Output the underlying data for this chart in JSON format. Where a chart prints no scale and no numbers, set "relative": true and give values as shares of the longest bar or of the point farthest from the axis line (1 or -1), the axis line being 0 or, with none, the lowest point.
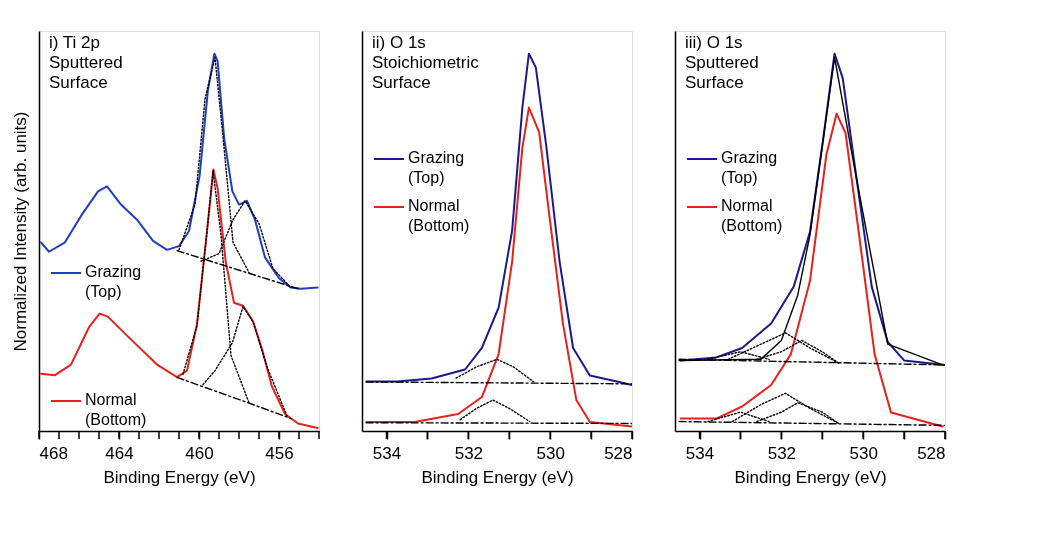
{
  "chart_data": [
    {
      "type": "line",
      "title": "i) Ti 2p\nSputtered\nSurface",
      "xlabel": "Binding Energy (eV)",
      "ylabel": "Normalized Intensity (arb. units)",
      "relative": true,
      "tick_labels": "x",
      "legend": "left",
      "xlim": [
        468,
        454
      ],
      "xticks": [
        468,
        {
          "value": 467,
          "label": null
        },
        {
          "value": 466,
          "label": null
        },
        {
          "value": 465,
          "label": null
        },
        464,
        {
          "value": 463,
          "label": null
        },
        {
          "value": 462,
          "label": null
        },
        {
          "value": 461,
          "label": null
        },
        460,
        {
          "value": 459,
          "label": null
        },
        {
          "value": 458,
          "label": null
        },
        {
          "value": 457,
          "label": null
        },
        456,
        {
          "value": 455,
          "label": null
        },
        {
          "value": 454,
          "label": null
        }
      ],
      "series": [
        {
          "name": "Grazing\n(Top)",
          "color": "#1f3fbf",
          "line_style": "solid",
          "x": [
            467.9,
            467.5,
            466.7,
            465.9,
            465.05,
            464.6,
            463.9,
            463.1,
            462.3,
            461.6,
            461.0,
            460.5,
            459.97,
            459.56,
            459.23,
            459.07,
            458.74,
            458.33,
            458.0,
            457.6,
            457.2,
            456.7,
            456.0,
            455.4,
            454.9,
            454.07
          ],
          "values": [
            0.5,
            0.475,
            0.5,
            0.57,
            0.635,
            0.648,
            0.6,
            0.56,
            0.504,
            0.48,
            0.49,
            0.53,
            0.676,
            0.9,
            1.0,
            0.98,
            0.775,
            0.635,
            0.6,
            0.61,
            0.56,
            0.46,
            0.405,
            0.38,
            0.377,
            0.38
          ]
        },
        {
          "name": "Normal\n(Bottom)",
          "color": "#e8201e",
          "line_style": "solid",
          "x": [
            467.9,
            467.2,
            466.4,
            465.5,
            464.97,
            464.56,
            463.7,
            462.9,
            462.1,
            461.1,
            460.6,
            460.1,
            459.6,
            459.28,
            459.07,
            458.66,
            458.25,
            457.8,
            457.3,
            456.85,
            456.36,
            455.7,
            455.05,
            454.07
          ],
          "values": [
            0.152,
            0.148,
            0.176,
            0.275,
            0.311,
            0.303,
            0.258,
            0.217,
            0.176,
            0.143,
            0.16,
            0.283,
            0.529,
            0.693,
            0.643,
            0.447,
            0.34,
            0.332,
            0.291,
            0.217,
            0.119,
            0.045,
            0.02,
            0.008
          ]
        },
        {
          "color": "#000000",
          "line_style": "dashed",
          "x": [
            461.1,
            457.5,
            455.05
          ],
          "values": [
            0.478,
            0.418,
            0.377
          ]
        },
        {
          "color": "#000000",
          "line_style": "dashed",
          "x": [
            461.1,
            457.5,
            455.4
          ],
          "values": [
            0.142,
            0.074,
            0.033
          ]
        },
        {
          "color": "#000000",
          "line_style": "dotted",
          "x": [
            461.0,
            460.2,
            459.7,
            459.2,
            458.8,
            458.3,
            457.5
          ],
          "values": [
            0.48,
            0.6,
            0.88,
            0.99,
            0.78,
            0.5,
            0.42
          ]
        },
        {
          "color": "#000000",
          "line_style": "dotted",
          "x": [
            459.9,
            459.0,
            458.3,
            457.7,
            457.0,
            456.3,
            455.4
          ],
          "values": [
            0.45,
            0.47,
            0.56,
            0.61,
            0.55,
            0.43,
            0.38
          ]
        },
        {
          "color": "#000000",
          "line_style": "dotted",
          "x": [
            460.8,
            460.1,
            459.6,
            459.3,
            458.9,
            458.4,
            457.5
          ],
          "values": [
            0.15,
            0.28,
            0.53,
            0.69,
            0.52,
            0.2,
            0.075
          ]
        },
        {
          "color": "#000000",
          "line_style": "dotted",
          "x": [
            459.8,
            459.2,
            458.33,
            457.8,
            457.3,
            456.6,
            455.6
          ],
          "values": [
            0.123,
            0.16,
            0.234,
            0.33,
            0.29,
            0.17,
            0.04
          ]
        }
      ]
    },
    {
      "type": "line",
      "title": "ii) O 1s\nStoichiometric\nSurface",
      "xlabel": "Binding Energy (eV)",
      "relative": true,
      "tick_labels": "x",
      "legend": "left",
      "xlim": [
        534.6,
        528
      ],
      "xticks": [
        534,
        {
          "value": 533,
          "label": null
        },
        532,
        {
          "value": 531,
          "label": null
        },
        530,
        {
          "value": 529,
          "label": null
        },
        528
      ],
      "series": [
        {
          "name": "Grazing\n(Top)",
          "color": "#1a1a8c",
          "line_style": "solid",
          "x": [
            534.49,
            533.74,
            532.9,
            532.08,
            531.67,
            531.26,
            530.93,
            530.68,
            530.52,
            530.35,
            530.1,
            529.77,
            529.44,
            529.03,
            528.37,
            528.0
          ],
          "values": [
            0.131,
            0.131,
            0.139,
            0.163,
            0.22,
            0.327,
            0.531,
            0.857,
            1.0,
            0.963,
            0.759,
            0.449,
            0.22,
            0.147,
            0.131,
            0.122
          ]
        },
        {
          "name": "Normal\n(Bottom)",
          "color": "#e8201e",
          "line_style": "solid",
          "x": [
            534.49,
            533.32,
            532.25,
            531.67,
            531.26,
            530.93,
            530.68,
            530.52,
            530.27,
            530.02,
            529.69,
            529.36,
            529.03,
            528.0
          ],
          "values": [
            0.024,
            0.024,
            0.045,
            0.09,
            0.204,
            0.449,
            0.751,
            0.857,
            0.792,
            0.571,
            0.286,
            0.082,
            0.024,
            0.012
          ]
        },
        {
          "color": "#000000",
          "line_style": "dashed",
          "x": [
            534.5,
            528.0
          ],
          "values": [
            0.13,
            0.125
          ]
        },
        {
          "color": "#000000",
          "line_style": "dashed",
          "x": [
            534.5,
            528.0
          ],
          "values": [
            0.022,
            0.02
          ]
        },
        {
          "color": "#000000",
          "line_style": "dotted",
          "x": [
            532.3,
            531.8,
            531.3,
            530.9,
            530.4
          ],
          "values": [
            0.14,
            0.17,
            0.19,
            0.17,
            0.13
          ]
        },
        {
          "color": "#000000",
          "line_style": "dotted",
          "x": [
            532.2,
            531.8,
            531.4,
            531.0,
            530.5
          ],
          "values": [
            0.03,
            0.06,
            0.082,
            0.06,
            0.025
          ]
        }
      ]
    },
    {
      "type": "line",
      "title": "iii) O 1s\nSputtered\nSurface",
      "xlabel": "Binding Energy (eV)",
      "relative": true,
      "tick_labels": "x",
      "legend": "left",
      "xlim": [
        534.6,
        528
      ],
      "xticks": [
        534,
        {
          "value": 533,
          "label": null
        },
        532,
        {
          "value": 531,
          "label": null
        },
        530,
        {
          "value": 529,
          "label": null
        },
        528
      ],
      "series": [
        {
          "name": "Grazing\n(Top)",
          "color": "#1a1a8c",
          "line_style": "solid",
          "x": [
            534.46,
            533.59,
            532.96,
            532.25,
            531.7,
            531.3,
            530.98,
            530.7,
            530.5,
            530.19,
            529.79,
            529.4,
            529.0,
            528.0
          ],
          "values": [
            0.187,
            0.195,
            0.22,
            0.285,
            0.382,
            0.528,
            0.772,
            1.0,
            0.935,
            0.691,
            0.382,
            0.236,
            0.187,
            0.175
          ]
        },
        {
          "name": "Normal\n(Bottom)",
          "color": "#e8201e",
          "line_style": "solid",
          "x": [
            534.46,
            533.59,
            532.96,
            532.25,
            531.77,
            531.3,
            530.9,
            530.65,
            530.43,
            530.11,
            529.72,
            529.32,
            528.06
          ],
          "values": [
            0.033,
            0.033,
            0.065,
            0.122,
            0.203,
            0.398,
            0.732,
            0.841,
            0.789,
            0.528,
            0.203,
            0.049,
            0.012
          ]
        },
        {
          "color": "#000000",
          "line_style": "solid",
          "x": [
            534.5,
            532.5,
            532.0,
            531.6,
            531.3,
            530.98,
            530.7,
            530.2,
            529.4,
            528.06
          ],
          "values": [
            0.187,
            0.19,
            0.24,
            0.36,
            0.52,
            0.77,
            0.99,
            0.69,
            0.23,
            0.175
          ]
        },
        {
          "color": "#000000",
          "line_style": "dashed",
          "x": [
            534.5,
            528.0
          ],
          "values": [
            0.19,
            0.175
          ]
        },
        {
          "color": "#000000",
          "line_style": "dashed",
          "x": [
            534.5,
            528.0
          ],
          "values": [
            0.025,
            0.015
          ]
        },
        {
          "color": "#000000",
          "line_style": "dotted",
          "x": [
            533.3,
            532.5,
            531.9,
            531.3,
            530.6
          ],
          "values": [
            0.19,
            0.23,
            0.26,
            0.22,
            0.18
          ]
        },
        {
          "color": "#000000",
          "line_style": "dotted",
          "x": [
            532.6,
            532.0,
            531.5,
            531.0,
            530.6
          ],
          "values": [
            0.19,
            0.21,
            0.24,
            0.21,
            0.18
          ]
        },
        {
          "color": "#000000",
          "line_style": "dotted",
          "x": [
            533.8,
            533.0,
            532.3
          ],
          "values": [
            0.19,
            0.21,
            0.19
          ]
        },
        {
          "color": "#000000",
          "line_style": "dotted",
          "x": [
            533.2,
            532.5,
            531.9,
            531.3,
            530.6
          ],
          "values": [
            0.025,
            0.07,
            0.1,
            0.06,
            0.02
          ]
        },
        {
          "color": "#000000",
          "line_style": "dotted",
          "x": [
            532.6,
            532.0,
            531.6,
            531.0,
            530.6
          ],
          "values": [
            0.025,
            0.05,
            0.075,
            0.05,
            0.02
          ]
        },
        {
          "color": "#000000",
          "line_style": "dotted",
          "x": [
            533.8,
            533.0,
            532.3
          ],
          "values": [
            0.025,
            0.05,
            0.025
          ]
        }
      ]
    }
  ]
}
